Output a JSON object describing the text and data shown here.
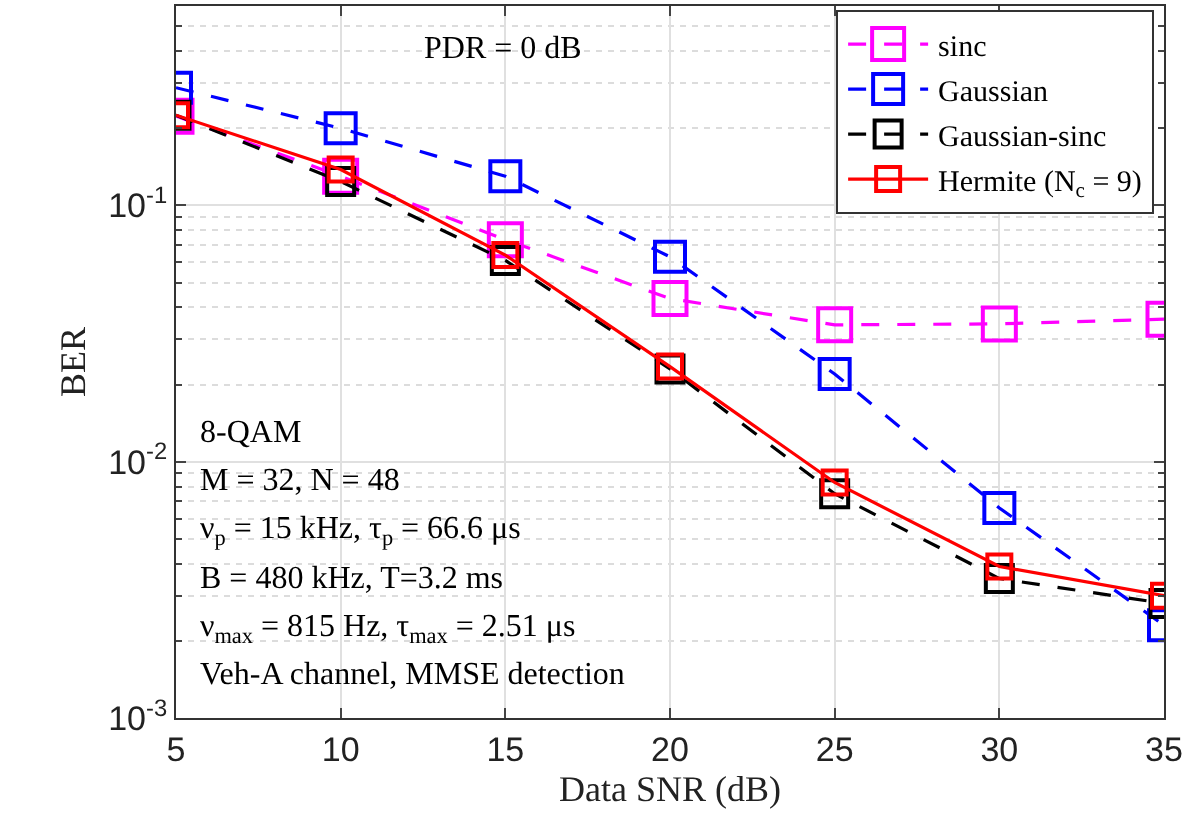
{
  "chart_data": {
    "type": "line",
    "xlabel": "Data SNR (dB)",
    "ylabel": "BER",
    "x": [
      5,
      10,
      15,
      20,
      25,
      30,
      35
    ],
    "series": [
      {
        "name": "sinc",
        "color": "#ff00ff",
        "line_style": "dashed",
        "values": [
          0.223,
          0.13,
          0.0735,
          0.0433,
          0.0342,
          0.0345,
          0.036
        ]
      },
      {
        "name": "Gaussian",
        "color": "#0000ff",
        "line_style": "dashed",
        "values": [
          0.288,
          0.2,
          0.13,
          0.063,
          0.022,
          0.0066,
          0.0023
        ]
      },
      {
        "name": "Gaussian-sinc",
        "color": "#000000",
        "line_style": "dashed",
        "values": [
          0.225,
          0.124,
          0.061,
          0.023,
          0.0075,
          0.0035,
          0.0028
        ]
      },
      {
        "name": "Hermite (N$_{c}$ = 9)",
        "color": "#ff0000",
        "line_style": "solid",
        "values": [
          0.225,
          0.138,
          0.064,
          0.0235,
          0.0083,
          0.0039,
          0.003
        ]
      }
    ],
    "log": "y",
    "xlim": [
      5,
      35
    ],
    "xticks": [
      5,
      10,
      15,
      20,
      25,
      30,
      35
    ],
    "ylim": [
      0.001,
      0.6
    ],
    "yticks": [
      {
        "value": 0.001,
        "label": "10$^{-3}$"
      },
      {
        "value": 0.01,
        "label": "10$^{-2}$"
      },
      {
        "value": 0.1,
        "label": "10$^{-1}$"
      }
    ],
    "grid": true,
    "legend": "top right",
    "marker": "square",
    "annotations": [
      "PDR = 0 dB",
      "8-QAM",
      "M = 32, N = 48",
      "ν$_{p}$ = 15 kHz, τ$_{p}$ = 66.6 μs",
      "B = 480 kHz, T=3.2 ms",
      "ν$_{max}$ = 815 Hz, τ$_{max}$ = 2.51 μs",
      "Veh-A channel, MMSE detection"
    ]
  }
}
